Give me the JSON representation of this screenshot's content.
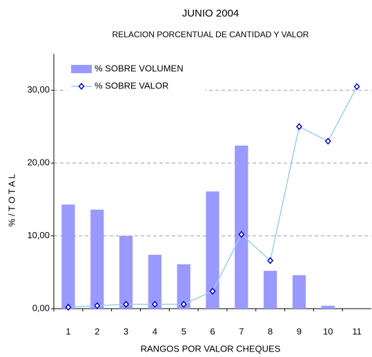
{
  "chart_data": {
    "type": "bar",
    "title": "JUNIO  2004",
    "subtitle": "RELACION PORCENTUAL DE CANTIDAD Y VALOR",
    "x_label": "RANGOS POR VALOR CHEQUES",
    "y_label": "%   /   T O T A L",
    "categories": [
      "1",
      "2",
      "3",
      "4",
      "5",
      "6",
      "7",
      "8",
      "9",
      "10",
      "11"
    ],
    "series": [
      {
        "name": "% SOBRE VOLUMEN",
        "type": "bar",
        "color": "#9999ff",
        "values": [
          14.3,
          13.6,
          10.0,
          7.4,
          6.1,
          16.1,
          22.4,
          5.2,
          4.6,
          0.4,
          0
        ]
      },
      {
        "name": "% SOBRE VALOR",
        "type": "line",
        "color": "#99ccee",
        "marker_color": "#0000cc",
        "values": [
          0.2,
          0.4,
          0.6,
          0.6,
          0.6,
          2.4,
          10.2,
          6.6,
          25.0,
          23.0,
          30.5
        ]
      }
    ],
    "ylim": [
      0,
      35
    ],
    "yticks": [
      {
        "value": 0,
        "label": "0,00"
      },
      {
        "value": 10,
        "label": "10,00"
      },
      {
        "value": 20,
        "label": "20,00"
      },
      {
        "value": 30,
        "label": "30,00"
      }
    ],
    "grid": true,
    "legend": "upper left"
  }
}
